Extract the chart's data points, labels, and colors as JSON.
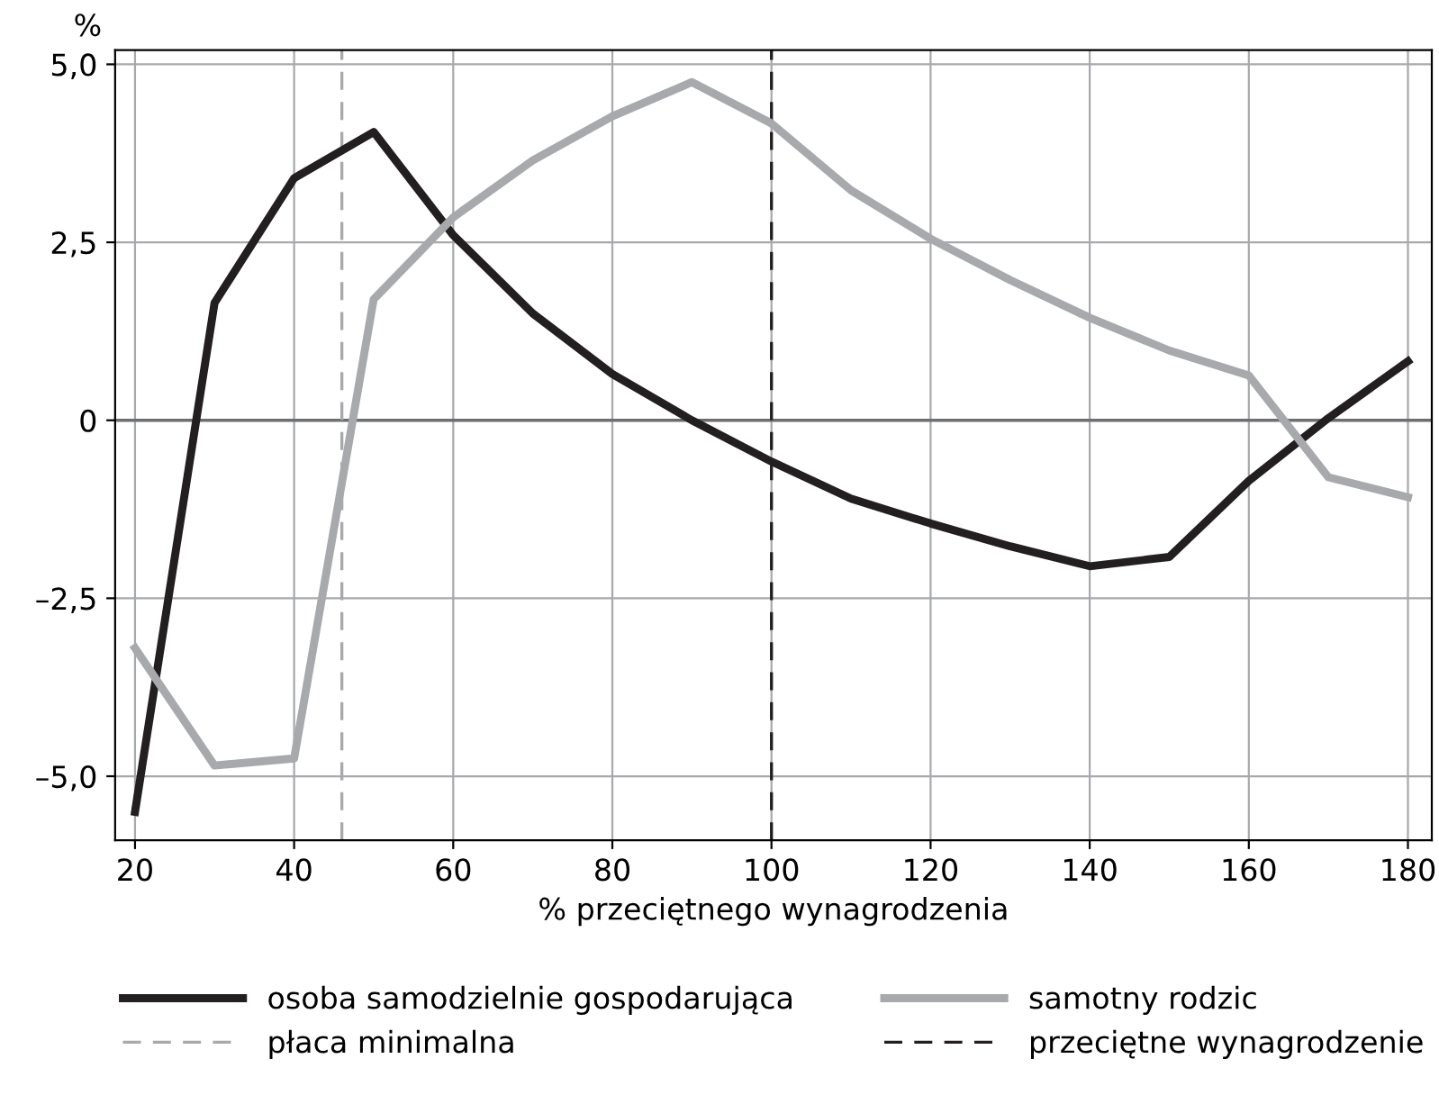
{
  "chart_data": {
    "type": "line",
    "x": [
      20,
      30,
      40,
      50,
      60,
      70,
      80,
      90,
      100,
      110,
      120,
      130,
      140,
      150,
      160,
      170,
      180
    ],
    "series": [
      {
        "name": "osoba samodzielnie gospodarująca",
        "color": "#231f20",
        "values": [
          -5.5,
          1.65,
          3.4,
          4.05,
          2.6,
          1.5,
          0.65,
          0,
          -0.58,
          -1.1,
          -1.45,
          -1.77,
          -2.05,
          -1.92,
          -0.85,
          0.03,
          0.83
        ]
      },
      {
        "name": "samotny rodzic",
        "color": "#a7a9ac",
        "values": [
          -3.2,
          -4.85,
          -4.75,
          1.7,
          2.85,
          3.65,
          4.27,
          4.75,
          4.17,
          3.23,
          2.55,
          1.97,
          1.44,
          0.98,
          0.63,
          -0.8,
          -1.08
        ]
      }
    ],
    "xlabel": "% przeciętnego wynagrodzenia",
    "ylabel": "%",
    "xlim": [
      17.5,
      183
    ],
    "xticks": [
      20,
      40,
      60,
      80,
      100,
      120,
      140,
      160,
      180
    ],
    "ylim": [
      -5.9,
      5.2
    ],
    "yticks": [
      {
        "value": -5,
        "label": "–5,0"
      },
      {
        "value": -2.5,
        "label": "–2,5"
      },
      0,
      {
        "value": 2.5,
        "label": "2,5"
      },
      {
        "value": 5,
        "label": "5,0"
      }
    ],
    "ref_lines": [
      {
        "axis": "y",
        "value": 0,
        "color": "#6d6e71",
        "line_style": "solid"
      },
      {
        "axis": "x",
        "value": 46,
        "label": "płaca minimalna",
        "color": "#a7a9ac",
        "line_style": "dashed"
      },
      {
        "axis": "x",
        "value": 100,
        "label": "przeciętne wynagrodzenie",
        "color": "#231f20",
        "line_style": "dashed"
      }
    ],
    "grid": true,
    "legend": "bottom",
    "marker": "none",
    "line_style": "solid"
  }
}
